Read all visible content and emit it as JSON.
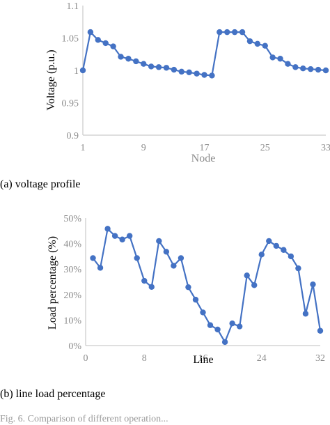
{
  "chart_data": [
    {
      "type": "line",
      "xlabel": "Node",
      "ylabel": "Voltage (p.u.)",
      "x_ticks": [
        "1",
        "9",
        "17",
        "25",
        "33"
      ],
      "y_ticks": [
        "0.9",
        "0.95",
        "1",
        "1.05",
        "1.1"
      ],
      "xlim": [
        1,
        33
      ],
      "ylim": [
        0.9,
        1.1
      ],
      "grid": false,
      "color": "#4472c4",
      "x": [
        1,
        2,
        3,
        4,
        5,
        6,
        7,
        8,
        9,
        10,
        11,
        12,
        13,
        14,
        15,
        16,
        17,
        18,
        19,
        20,
        21,
        22,
        23,
        24,
        25,
        26,
        27,
        28,
        29,
        30,
        31,
        32,
        33
      ],
      "values": [
        1.0,
        1.059,
        1.047,
        1.042,
        1.037,
        1.021,
        1.018,
        1.014,
        1.01,
        1.006,
        1.005,
        1.004,
        1.001,
        0.998,
        0.997,
        0.995,
        0.993,
        0.992,
        1.059,
        1.059,
        1.059,
        1.059,
        1.045,
        1.041,
        1.038,
        1.02,
        1.018,
        1.01,
        1.005,
        1.003,
        1.002,
        1.001,
        1.0
      ],
      "caption": "(a) voltage profile"
    },
    {
      "type": "line",
      "xlabel": "Line",
      "ylabel": "Load percentage (%)",
      "x_ticks": [
        "0",
        "8",
        "16",
        "24",
        "32"
      ],
      "y_ticks": [
        "0%",
        "10%",
        "20%",
        "30%",
        "40%",
        "50%"
      ],
      "xlim": [
        0,
        32
      ],
      "ylim": [
        0,
        50
      ],
      "grid": false,
      "color": "#4472c4",
      "x": [
        1,
        2,
        3,
        4,
        5,
        6,
        7,
        8,
        9,
        10,
        11,
        12,
        13,
        14,
        15,
        16,
        17,
        18,
        19,
        20,
        21,
        22,
        23,
        24,
        25,
        26,
        27,
        28,
        29,
        30,
        31,
        32
      ],
      "values": [
        34.3,
        30.5,
        45.8,
        43.0,
        41.6,
        43.0,
        34.3,
        25.4,
        23.0,
        41.0,
        36.8,
        31.3,
        34.3,
        22.9,
        18.0,
        13.0,
        8.0,
        6.3,
        1.4,
        8.7,
        7.5,
        27.5,
        23.7,
        35.7,
        41.0,
        39.1,
        37.5,
        35.0,
        30.3,
        12.5,
        24.0,
        5.8
      ],
      "caption": "(b) line load percentage"
    }
  ],
  "footer": "Fig. 6. Comparison of different operation..."
}
